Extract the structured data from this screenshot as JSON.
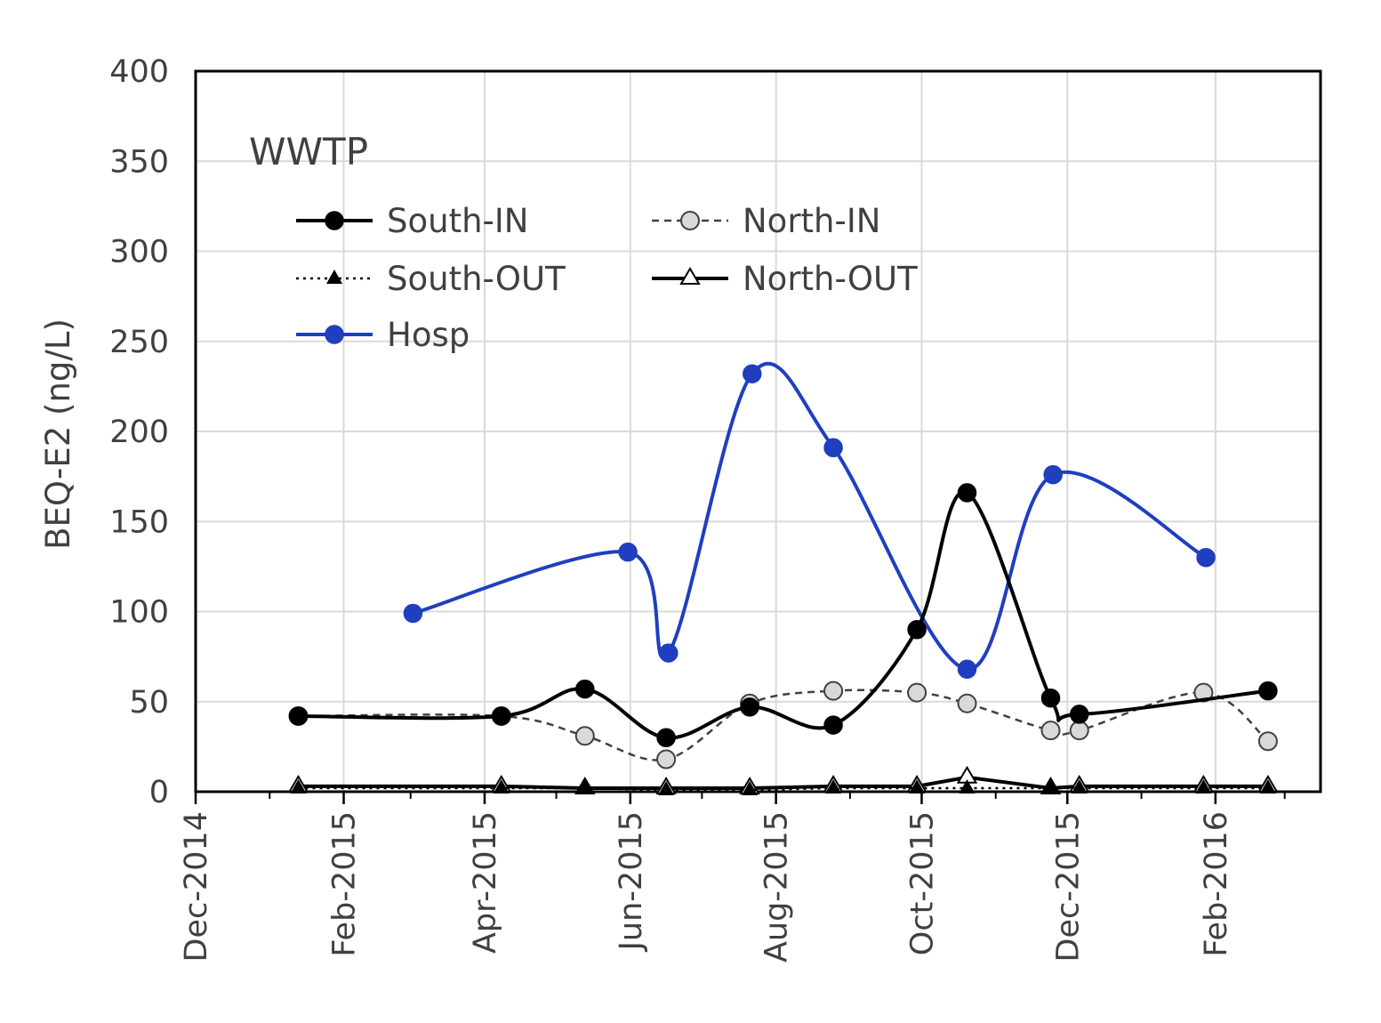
{
  "chart_data": {
    "type": "line",
    "title": "",
    "panel_label": "WWTP",
    "ylabel": "BEQ-E2 (ng/L)",
    "xlabel": "",
    "ylim": [
      0,
      400
    ],
    "yticks": [
      0,
      50,
      100,
      150,
      200,
      250,
      300,
      350,
      400
    ],
    "xlim": [
      "2014-12-01",
      "2016-03-16"
    ],
    "xticks": [
      "2014-12-01",
      "2015-02-01",
      "2015-04-01",
      "2015-06-01",
      "2015-08-01",
      "2015-10-01",
      "2015-12-01",
      "2016-02-01"
    ],
    "xtick_labels": [
      "Dec-2014",
      "Feb-2015",
      "Apr-2015",
      "Jun-2015",
      "Aug-2015",
      "Oct-2015",
      "Dec-2015",
      "Feb-2016"
    ],
    "grid": true,
    "legend_position": "top-left",
    "series": [
      {
        "name": "South-IN",
        "color": "#000000",
        "line_style": "solid",
        "marker": "filled-circle",
        "smooth": true,
        "x": [
          "2015-01-13",
          "2015-04-08",
          "2015-05-13",
          "2015-06-16",
          "2015-07-21",
          "2015-08-25",
          "2015-09-29",
          "2015-10-20",
          "2015-11-24",
          "2015-12-06",
          "2016-02-23"
        ],
        "y": [
          42,
          42,
          57,
          30,
          47,
          37,
          90,
          166,
          52,
          43,
          56
        ]
      },
      {
        "name": "North-IN",
        "color": "#404040",
        "line_style": "dashed",
        "marker": "open-circle-gray",
        "smooth": true,
        "x": [
          "2015-01-13",
          "2015-04-08",
          "2015-05-13",
          "2015-06-16",
          "2015-07-21",
          "2015-08-25",
          "2015-09-29",
          "2015-10-20",
          "2015-11-24",
          "2015-12-06",
          "2016-01-27",
          "2016-02-23"
        ],
        "y": [
          42,
          42,
          31,
          18,
          49,
          56,
          55,
          49,
          34,
          34,
          55,
          28
        ]
      },
      {
        "name": "South-OUT",
        "color": "#000000",
        "line_style": "dotted",
        "marker": "filled-triangle",
        "smooth": false,
        "x": [
          "2015-01-13",
          "2015-04-08",
          "2015-05-13",
          "2015-06-16",
          "2015-07-21",
          "2015-08-25",
          "2015-09-29",
          "2015-10-20",
          "2015-11-24",
          "2015-12-06",
          "2016-01-27",
          "2016-02-23"
        ],
        "y": [
          2,
          2,
          2,
          1,
          1,
          2,
          2,
          2,
          2,
          2,
          2,
          2
        ]
      },
      {
        "name": "North-OUT",
        "color": "#000000",
        "line_style": "solid",
        "marker": "open-triangle",
        "smooth": false,
        "x": [
          "2015-01-13",
          "2015-04-08",
          "2015-05-13",
          "2015-06-16",
          "2015-07-21",
          "2015-08-25",
          "2015-09-29",
          "2015-10-20",
          "2015-11-24",
          "2015-12-06",
          "2016-01-27",
          "2016-02-23"
        ],
        "y": [
          3,
          3,
          2,
          2,
          2,
          3,
          3,
          8,
          2,
          3,
          3,
          3
        ]
      },
      {
        "name": "Hosp",
        "color": "#1f3fbf",
        "line_style": "solid",
        "marker": "filled-circle-blue",
        "smooth": true,
        "x": [
          "2015-03-02",
          "2015-05-31",
          "2015-06-17",
          "2015-07-22",
          "2015-08-25",
          "2015-10-20",
          "2015-11-25",
          "2016-01-28"
        ],
        "y": [
          99,
          133,
          77,
          232,
          191,
          68,
          176,
          130
        ]
      }
    ]
  }
}
